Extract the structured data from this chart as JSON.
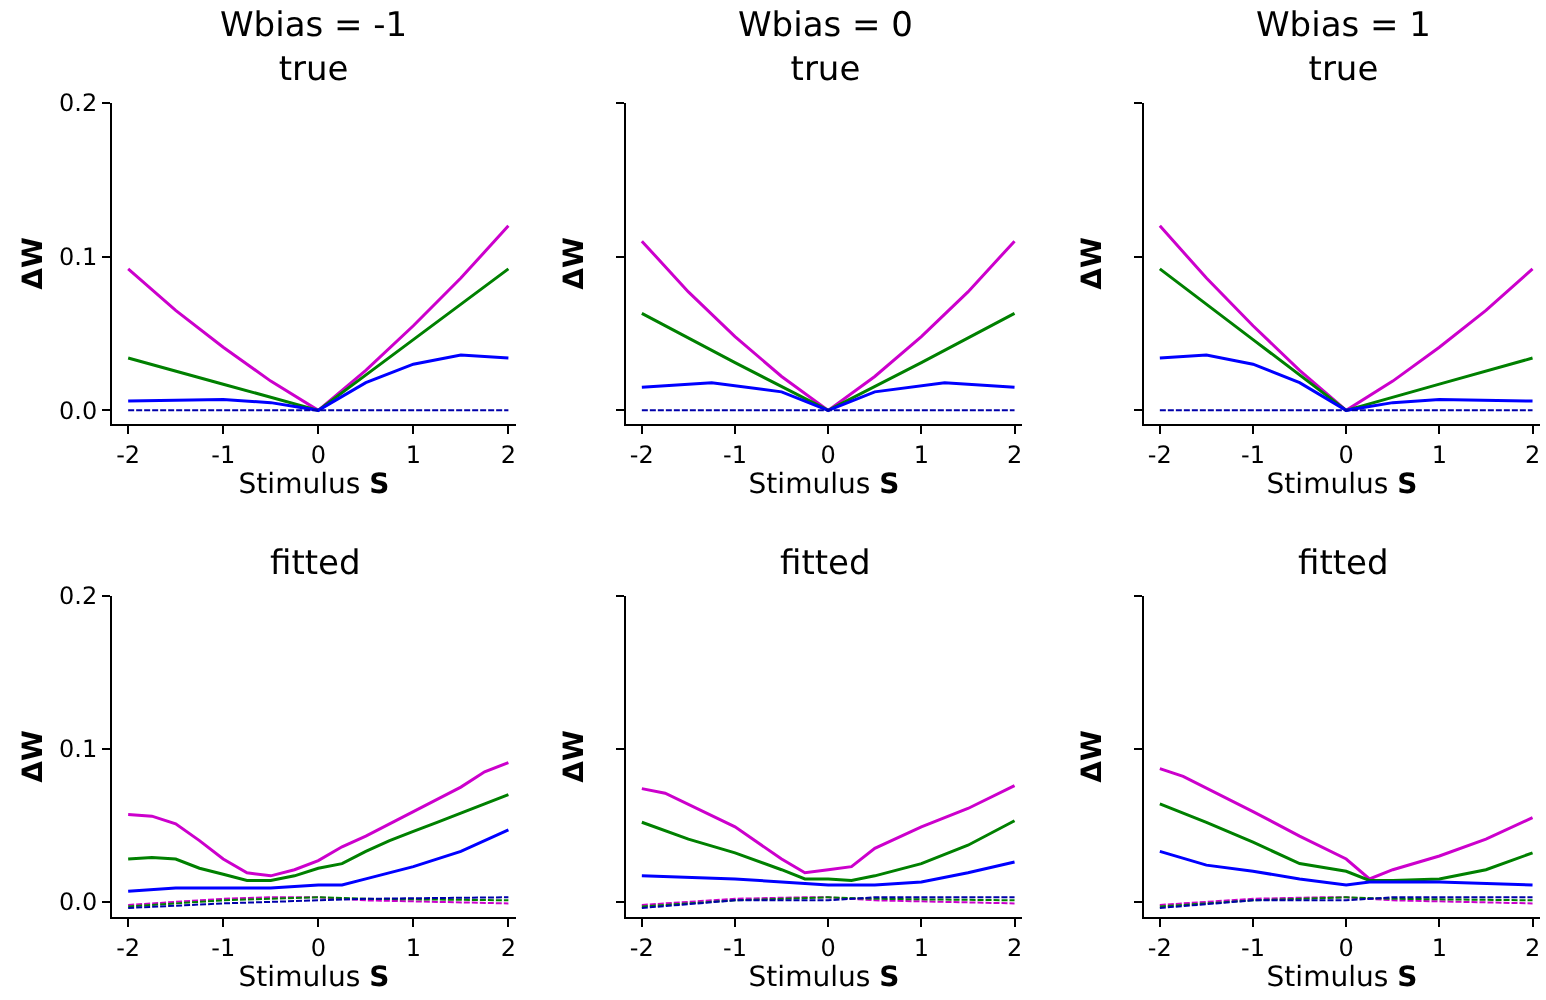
{
  "chart_data": [
    {
      "type": "line",
      "title": "Wbias = -1\ntrue",
      "xlabel": "Stimulus S",
      "ylabel": "ΔW",
      "xlim": [
        -2.17,
        2.08
      ],
      "ylim": [
        -0.009,
        0.2
      ],
      "xticks": [
        -2,
        -1,
        0,
        1,
        2
      ],
      "yticks": [
        {
          "value": 0,
          "label": "0.0"
        },
        {
          "value": 0.1,
          "label": "0.1"
        },
        {
          "value": 0.2,
          "label": "0.2"
        }
      ],
      "series": [
        {
          "color": "#cc00cc",
          "x": [
            -2,
            -1.5,
            -1,
            -0.5,
            0,
            0.5,
            1,
            1.5,
            2
          ],
          "values": [
            0.092,
            0.065,
            0.041,
            0.019,
            0,
            0.026,
            0.055,
            0.086,
            0.12
          ]
        },
        {
          "color": "#008000",
          "x": [
            -2,
            -1,
            0,
            1,
            2
          ],
          "values": [
            0.034,
            0.017,
            0,
            0.046,
            0.092
          ]
        },
        {
          "color": "#0000ff",
          "x": [
            -2,
            -1,
            -0.5,
            0,
            0.5,
            1,
            1.5,
            2
          ],
          "values": [
            0.006,
            0.007,
            0.005,
            0,
            0.018,
            0.03,
            0.036,
            0.034
          ]
        },
        {
          "color": "#0000aa",
          "line_style": "dashed",
          "x": [
            -2,
            2
          ],
          "values": [
            0,
            0
          ]
        }
      ]
    },
    {
      "type": "line",
      "title": "Wbias = 0\ntrue",
      "xlabel": "Stimulus S",
      "ylabel": "ΔW",
      "xlim": [
        -2.17,
        2.08
      ],
      "ylim": [
        -0.009,
        0.2
      ],
      "xticks": [
        -2,
        -1,
        0,
        1,
        2
      ],
      "yticks": [
        {
          "value": 0,
          "label": null
        },
        {
          "value": 0.1,
          "label": null
        },
        {
          "value": 0.2,
          "label": null
        }
      ],
      "tick_labels": "x",
      "series": [
        {
          "color": "#cc00cc",
          "x": [
            -2,
            -1.5,
            -1,
            -0.5,
            0,
            0.5,
            1,
            1.5,
            2
          ],
          "values": [
            0.11,
            0.077,
            0.048,
            0.022,
            0,
            0.022,
            0.048,
            0.077,
            0.11
          ]
        },
        {
          "color": "#008000",
          "x": [
            -2,
            -1,
            0,
            1,
            2
          ],
          "values": [
            0.063,
            0.031,
            0,
            0.031,
            0.063
          ]
        },
        {
          "color": "#0000ff",
          "x": [
            -2,
            -1.25,
            -0.5,
            0,
            0.5,
            1.25,
            2
          ],
          "values": [
            0.015,
            0.018,
            0.012,
            0,
            0.012,
            0.018,
            0.015
          ]
        },
        {
          "color": "#0000aa",
          "line_style": "dashed",
          "x": [
            -2,
            2
          ],
          "values": [
            0,
            0
          ]
        }
      ]
    },
    {
      "type": "line",
      "title": "Wbias = 1\ntrue",
      "xlabel": "Stimulus S",
      "ylabel": "ΔW",
      "xlim": [
        -2.17,
        2.08
      ],
      "ylim": [
        -0.009,
        0.2
      ],
      "xticks": [
        -2,
        -1,
        0,
        1,
        2
      ],
      "yticks": [
        {
          "value": 0,
          "label": null
        },
        {
          "value": 0.1,
          "label": null
        },
        {
          "value": 0.2,
          "label": null
        }
      ],
      "tick_labels": "x",
      "series": [
        {
          "color": "#cc00cc",
          "x": [
            -2,
            -1.5,
            -1,
            -0.5,
            0,
            0.5,
            1,
            1.5,
            2
          ],
          "values": [
            0.12,
            0.086,
            0.055,
            0.026,
            0,
            0.019,
            0.041,
            0.065,
            0.092
          ]
        },
        {
          "color": "#008000",
          "x": [
            -2,
            -1,
            0,
            1,
            2
          ],
          "values": [
            0.092,
            0.046,
            0,
            0.017,
            0.034
          ]
        },
        {
          "color": "#0000ff",
          "x": [
            -2,
            -1.5,
            -1,
            -0.5,
            0,
            0.5,
            1,
            2
          ],
          "values": [
            0.034,
            0.036,
            0.03,
            0.018,
            0,
            0.005,
            0.007,
            0.006
          ]
        },
        {
          "color": "#0000aa",
          "line_style": "dashed",
          "x": [
            -2,
            2
          ],
          "values": [
            0,
            0
          ]
        }
      ]
    },
    {
      "type": "line",
      "title": "fitted",
      "xlabel": "Stimulus S",
      "ylabel": "ΔW",
      "xlim": [
        -2.17,
        2.08
      ],
      "ylim": [
        -0.01,
        0.2
      ],
      "xticks": [
        -2,
        -1,
        0,
        1,
        2
      ],
      "yticks": [
        {
          "value": 0,
          "label": "0.0"
        },
        {
          "value": 0.1,
          "label": "0.1"
        },
        {
          "value": 0.2,
          "label": "0.2"
        }
      ],
      "series": [
        {
          "color": "#cc00cc",
          "x": [
            -2,
            -1.75,
            -1.5,
            -1.25,
            -1,
            -0.75,
            -0.5,
            -0.25,
            0,
            0.25,
            0.5,
            0.75,
            1,
            1.25,
            1.5,
            1.75,
            2
          ],
          "values": [
            0.057,
            0.056,
            0.051,
            0.04,
            0.028,
            0.019,
            0.017,
            0.021,
            0.027,
            0.036,
            0.043,
            0.051,
            0.059,
            0.067,
            0.075,
            0.085,
            0.091
          ]
        },
        {
          "color": "#008000",
          "x": [
            -2,
            -1.75,
            -1.5,
            -1.25,
            -1,
            -0.75,
            -0.5,
            -0.25,
            0,
            0.25,
            0.5,
            0.75,
            1,
            1.25,
            1.5,
            1.75,
            2
          ],
          "values": [
            0.028,
            0.029,
            0.028,
            0.022,
            0.018,
            0.014,
            0.014,
            0.017,
            0.022,
            0.025,
            0.033,
            0.04,
            0.046,
            0.052,
            0.058,
            0.064,
            0.07
          ]
        },
        {
          "color": "#0000ff",
          "x": [
            -2,
            -1.5,
            -1,
            -0.5,
            0,
            0.25,
            0.5,
            1,
            1.5,
            2
          ],
          "values": [
            0.007,
            0.009,
            0.009,
            0.009,
            0.011,
            0.011,
            0.015,
            0.023,
            0.033,
            0.047
          ]
        },
        {
          "color": "#cc00cc",
          "line_style": "dashed",
          "x": [
            -2,
            -1,
            -0.5,
            0,
            0.5,
            2
          ],
          "values": [
            -0.002,
            0.002,
            0.003,
            0.003,
            0.001,
            -0.001
          ]
        },
        {
          "color": "#008000",
          "line_style": "dashed",
          "x": [
            -2,
            -1,
            0,
            0.5,
            2
          ],
          "values": [
            -0.003,
            0.001,
            0.003,
            0.002,
            0.001
          ]
        },
        {
          "color": "#0000aa",
          "line_style": "dashed",
          "x": [
            -2,
            -1,
            0,
            0.5,
            2
          ],
          "values": [
            -0.004,
            -0.001,
            0.001,
            0.002,
            0.003
          ]
        }
      ]
    },
    {
      "type": "line",
      "title": "fitted",
      "xlabel": "Stimulus S",
      "ylabel": "ΔW",
      "xlim": [
        -2.17,
        2.08
      ],
      "ylim": [
        -0.01,
        0.2
      ],
      "xticks": [
        -2,
        -1,
        0,
        1,
        2
      ],
      "yticks": [
        {
          "value": 0,
          "label": null
        },
        {
          "value": 0.1,
          "label": null
        },
        {
          "value": 0.2,
          "label": null
        }
      ],
      "tick_labels": "x",
      "series": [
        {
          "color": "#cc00cc",
          "x": [
            -2,
            -1.75,
            -1,
            -0.5,
            -0.25,
            0,
            0.25,
            0.5,
            1,
            1.5,
            2
          ],
          "values": [
            0.074,
            0.071,
            0.049,
            0.028,
            0.019,
            0.021,
            0.023,
            0.035,
            0.049,
            0.061,
            0.076
          ]
        },
        {
          "color": "#008000",
          "x": [
            -2,
            -1.5,
            -1,
            -0.5,
            -0.25,
            0,
            0.25,
            0.5,
            1,
            1.5,
            2
          ],
          "values": [
            0.052,
            0.041,
            0.032,
            0.021,
            0.015,
            0.015,
            0.014,
            0.017,
            0.025,
            0.037,
            0.053
          ]
        },
        {
          "color": "#0000ff",
          "x": [
            -2,
            -1,
            -0.5,
            0,
            0.5,
            1,
            1.5,
            2
          ],
          "values": [
            0.017,
            0.015,
            0.013,
            0.011,
            0.011,
            0.013,
            0.019,
            0.026
          ]
        },
        {
          "color": "#cc00cc",
          "line_style": "dashed",
          "x": [
            -2,
            -1,
            -0.25,
            0,
            0.5,
            2
          ],
          "values": [
            -0.002,
            0.002,
            0.003,
            0.003,
            0.001,
            -0.001
          ]
        },
        {
          "color": "#008000",
          "line_style": "dashed",
          "x": [
            -2,
            -1,
            0,
            0.5,
            2
          ],
          "values": [
            -0.003,
            0.001,
            0.003,
            0.002,
            0.001
          ]
        },
        {
          "color": "#0000aa",
          "line_style": "dashed",
          "x": [
            -2,
            -1,
            0,
            0.5,
            2
          ],
          "values": [
            -0.004,
            0.001,
            0.001,
            0.003,
            0.003
          ]
        }
      ]
    },
    {
      "type": "line",
      "title": "fitted",
      "xlabel": "Stimulus S",
      "ylabel": "ΔW",
      "xlim": [
        -2.17,
        2.08
      ],
      "ylim": [
        -0.01,
        0.2
      ],
      "xticks": [
        -2,
        -1,
        0,
        1,
        2
      ],
      "yticks": [
        {
          "value": 0,
          "label": null
        },
        {
          "value": 0.1,
          "label": null
        },
        {
          "value": 0.2,
          "label": null
        }
      ],
      "tick_labels": "x",
      "series": [
        {
          "color": "#cc00cc",
          "x": [
            -2,
            -1.75,
            -1,
            -0.5,
            0,
            0.25,
            0.5,
            1,
            1.5,
            2
          ],
          "values": [
            0.087,
            0.082,
            0.059,
            0.043,
            0.028,
            0.015,
            0.021,
            0.03,
            0.041,
            0.055
          ]
        },
        {
          "color": "#008000",
          "x": [
            -2,
            -1.5,
            -1,
            -0.5,
            0,
            0.25,
            0.5,
            1,
            1.5,
            2
          ],
          "values": [
            0.064,
            0.052,
            0.039,
            0.025,
            0.02,
            0.014,
            0.014,
            0.015,
            0.021,
            0.032
          ]
        },
        {
          "color": "#0000ff",
          "x": [
            -2,
            -1.5,
            -1,
            -0.5,
            0,
            0.25,
            1,
            2
          ],
          "values": [
            0.033,
            0.024,
            0.02,
            0.015,
            0.011,
            0.013,
            0.013,
            0.011
          ]
        },
        {
          "color": "#cc00cc",
          "line_style": "dashed",
          "x": [
            -2,
            -1,
            -0.25,
            0,
            0.5,
            2
          ],
          "values": [
            -0.002,
            0.002,
            0.003,
            0.003,
            0.001,
            -0.001
          ]
        },
        {
          "color": "#008000",
          "line_style": "dashed",
          "x": [
            -2,
            -1,
            0,
            0.5,
            2
          ],
          "values": [
            -0.003,
            0.001,
            0.003,
            0.002,
            0.001
          ]
        },
        {
          "color": "#0000aa",
          "line_style": "dashed",
          "x": [
            -2,
            -1,
            0,
            0.5,
            2
          ],
          "values": [
            -0.004,
            0.001,
            0.001,
            0.003,
            0.003
          ]
        }
      ]
    }
  ]
}
